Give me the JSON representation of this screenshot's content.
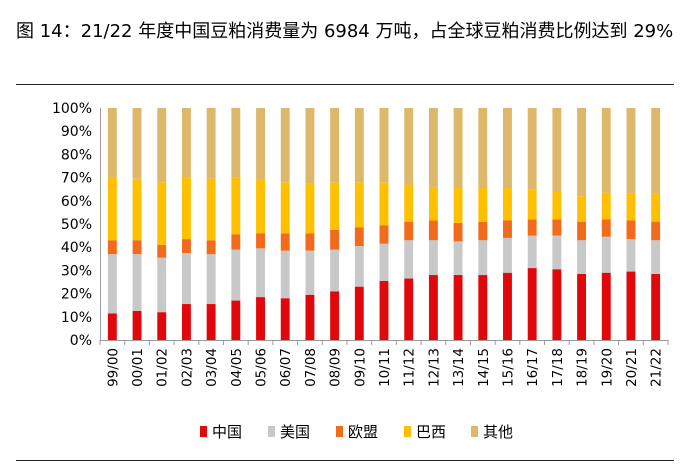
{
  "title": "图 14：21/22 年度中国豆粕消费量为 6984 万吨，占全球豆粕消费比例达到 29%",
  "chart_data": {
    "type": "bar",
    "stacked": true,
    "categories": [
      "99/00",
      "00/01",
      "01/02",
      "02/03",
      "03/04",
      "04/05",
      "05/06",
      "06/07",
      "07/08",
      "08/09",
      "09/10",
      "10/11",
      "11/12",
      "12/13",
      "13/14",
      "14/15",
      "15/16",
      "16/17",
      "17/18",
      "18/19",
      "19/20",
      "20/21",
      "21/22"
    ],
    "series": [
      {
        "name": "中国",
        "color": "#e0080b",
        "values": [
          11.5,
          12.5,
          12,
          15.5,
          15.5,
          17,
          18.5,
          18,
          19.5,
          21,
          23,
          25.5,
          26.5,
          28,
          28,
          28,
          29,
          31,
          30.5,
          28.5,
          29,
          29.5,
          28.5
        ]
      },
      {
        "name": "美国",
        "color": "#c8c8c8",
        "values": [
          25.5,
          24.5,
          23.5,
          22,
          21.5,
          22,
          21,
          20.5,
          19,
          18,
          17.5,
          16,
          16.5,
          15,
          14.5,
          15,
          15,
          14,
          14.5,
          14.5,
          15.5,
          14,
          14.5
        ]
      },
      {
        "name": "欧盟",
        "color": "#f26a1b",
        "values": [
          6,
          6,
          5.5,
          6,
          6,
          6.5,
          6.5,
          7.5,
          7.5,
          8.5,
          8,
          8,
          8,
          8.5,
          8,
          8,
          7.5,
          7,
          7,
          8,
          7.5,
          8,
          8
        ]
      },
      {
        "name": "巴西",
        "color": "#ffc000",
        "values": [
          27,
          26.5,
          27,
          26.5,
          26.5,
          24.5,
          23,
          22,
          21.5,
          20.5,
          19.5,
          18.5,
          16,
          14.5,
          15,
          14.5,
          14,
          13,
          12,
          11,
          11.5,
          11.5,
          12
        ]
      },
      {
        "name": "其他",
        "color": "#ddb76a",
        "values": [
          30,
          30.5,
          32,
          30,
          30.5,
          30,
          31,
          32,
          32.5,
          32,
          32,
          32,
          33,
          34,
          34.5,
          34.5,
          34.5,
          35,
          36,
          38,
          36.5,
          37,
          37
        ]
      }
    ],
    "y_ticks": [
      "0%",
      "10%",
      "20%",
      "30%",
      "40%",
      "50%",
      "60%",
      "70%",
      "80%",
      "90%",
      "100%"
    ],
    "ylim": [
      0,
      100
    ],
    "legend_position": "bottom-center",
    "xlabel": "",
    "ylabel": ""
  }
}
